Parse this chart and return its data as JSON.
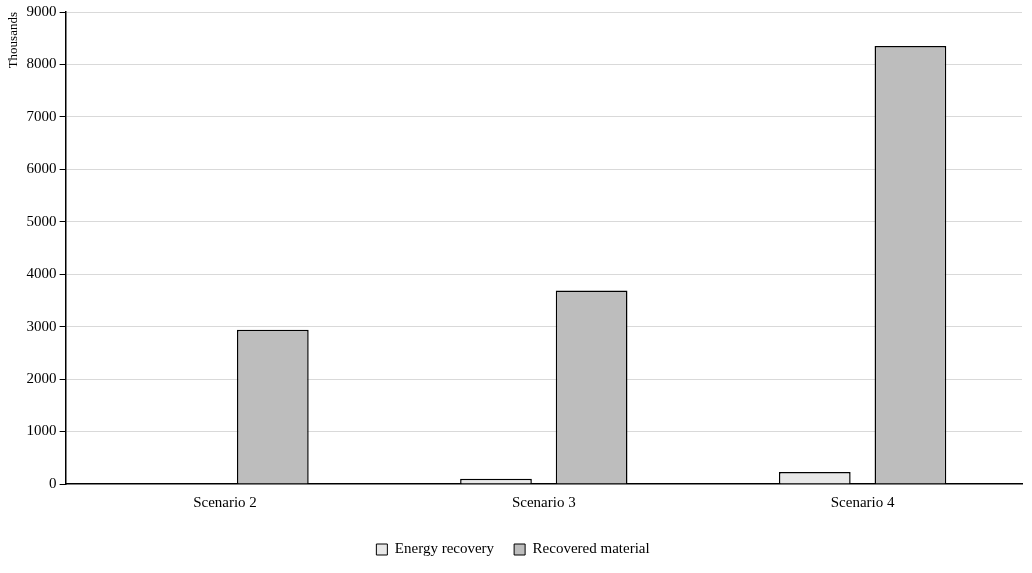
{
  "chart_data": {
    "type": "bar",
    "ylabel": "Thousands",
    "categories": [
      "Scenario 2",
      "Scenario 3",
      "Scenario 4"
    ],
    "series": [
      {
        "name": "Energy recovery",
        "color": "#e8e8e8",
        "values": [
          0,
          100,
          230
        ]
      },
      {
        "name": "Recovered material",
        "color": "#bdbdbd",
        "values": [
          2940,
          3690,
          8350
        ]
      }
    ],
    "ylim": [
      0,
      9000
    ],
    "yticks": [
      0,
      1000,
      2000,
      3000,
      4000,
      5000,
      6000,
      7000,
      8000,
      9000
    ],
    "grid": "y",
    "legend": "bottom"
  }
}
